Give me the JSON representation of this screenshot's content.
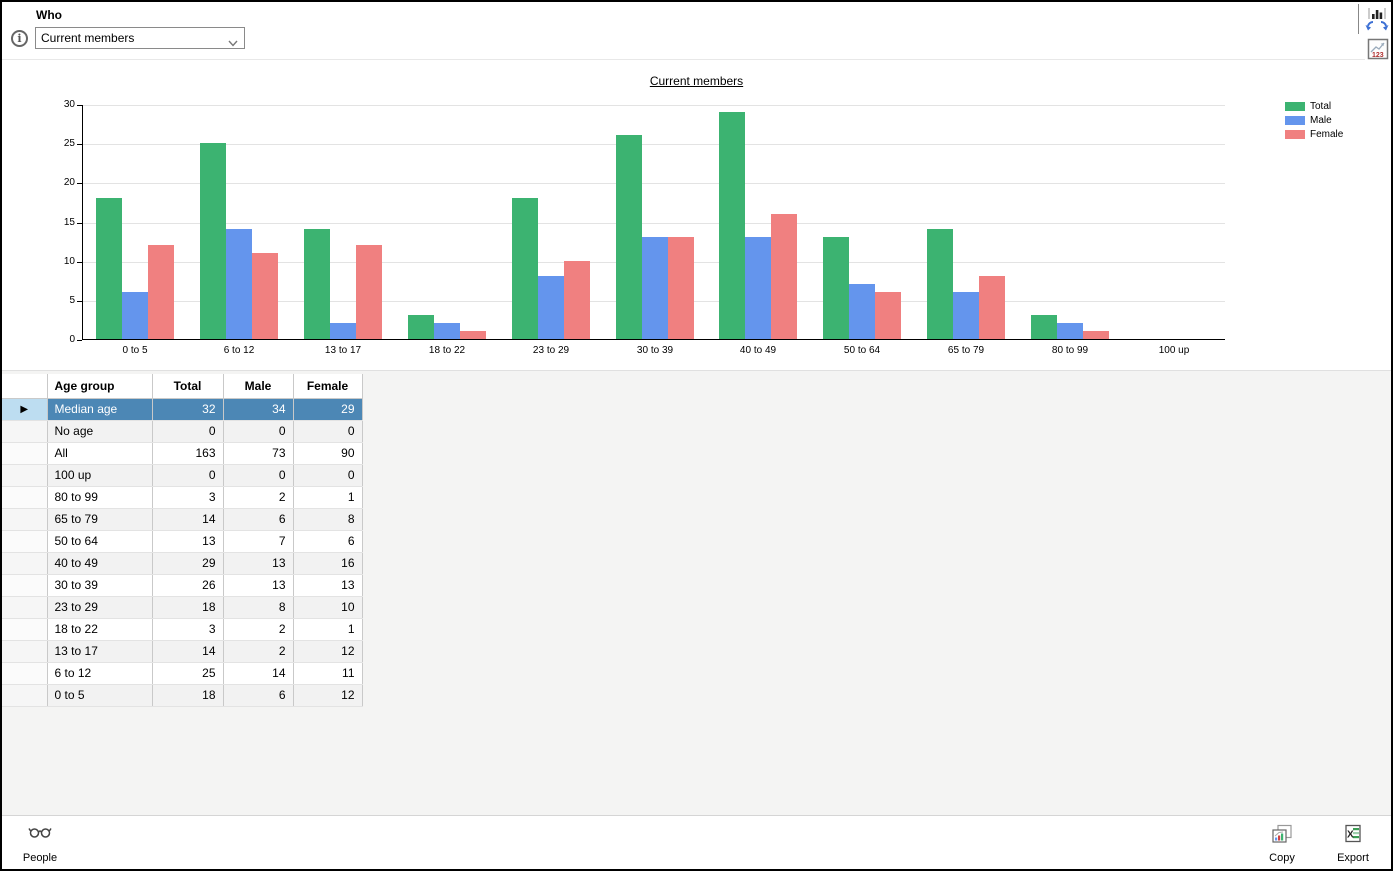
{
  "header": {
    "who_label": "Who",
    "who_value": "Current members",
    "icons": [
      "info-icon",
      "chevron-down-icon",
      "chart-swap-axes-icon",
      "chart-show-values-icon"
    ]
  },
  "chart_data": {
    "type": "bar",
    "title": "Current members",
    "categories": [
      "0 to 5",
      "6 to 12",
      "13 to 17",
      "18 to 22",
      "23 to 29",
      "30 to 39",
      "40 to 49",
      "50 to 64",
      "65 to 79",
      "80 to 99",
      "100 up"
    ],
    "series": [
      {
        "name": "Total",
        "color": "#3cb371",
        "values": [
          18,
          25,
          14,
          3,
          18,
          26,
          29,
          13,
          14,
          3,
          0
        ]
      },
      {
        "name": "Male",
        "color": "#6495ed",
        "values": [
          6,
          14,
          2,
          2,
          8,
          13,
          13,
          7,
          6,
          2,
          0
        ]
      },
      {
        "name": "Female",
        "color": "#f08080",
        "values": [
          12,
          11,
          12,
          1,
          10,
          13,
          16,
          6,
          8,
          1,
          0
        ]
      }
    ],
    "xlabel": "",
    "ylabel": "",
    "ylim": [
      0,
      30
    ],
    "yticks": [
      0,
      5,
      10,
      15,
      20,
      25,
      30
    ],
    "grid": true,
    "legend_position": "right"
  },
  "table": {
    "columns": [
      "Age group",
      "Total",
      "Male",
      "Female"
    ],
    "rows": [
      {
        "label": "Median age",
        "total": "32",
        "male": "34",
        "female": "29",
        "selected": true
      },
      {
        "label": "No age",
        "total": "0",
        "male": "0",
        "female": "0"
      },
      {
        "label": "All",
        "total": "163",
        "male": "73",
        "female": "90"
      },
      {
        "label": "100 up",
        "total": "0",
        "male": "0",
        "female": "0"
      },
      {
        "label": "80 to 99",
        "total": "3",
        "male": "2",
        "female": "1"
      },
      {
        "label": "65 to 79",
        "total": "14",
        "male": "6",
        "female": "8"
      },
      {
        "label": "50 to 64",
        "total": "13",
        "male": "7",
        "female": "6"
      },
      {
        "label": "40 to 49",
        "total": "29",
        "male": "13",
        "female": "16"
      },
      {
        "label": "30 to 39",
        "total": "26",
        "male": "13",
        "female": "13"
      },
      {
        "label": "23 to 29",
        "total": "18",
        "male": "8",
        "female": "10"
      },
      {
        "label": "18 to 22",
        "total": "3",
        "male": "2",
        "female": "1"
      },
      {
        "label": "13 to 17",
        "total": "14",
        "male": "2",
        "female": "12"
      },
      {
        "label": "6 to 12",
        "total": "25",
        "male": "14",
        "female": "11"
      },
      {
        "label": "0 to 5",
        "total": "18",
        "male": "6",
        "female": "12"
      }
    ],
    "selected_row_marker": "▶"
  },
  "toolbar": {
    "people_label": "People",
    "copy_label": "Copy",
    "export_label": "Export"
  },
  "colors": {
    "total": "#3cb371",
    "male": "#6495ed",
    "female": "#f08080",
    "selected_row": "#4c87b5",
    "header_highlight": "#bdddf1",
    "alt_row": "#f2f2f2"
  }
}
